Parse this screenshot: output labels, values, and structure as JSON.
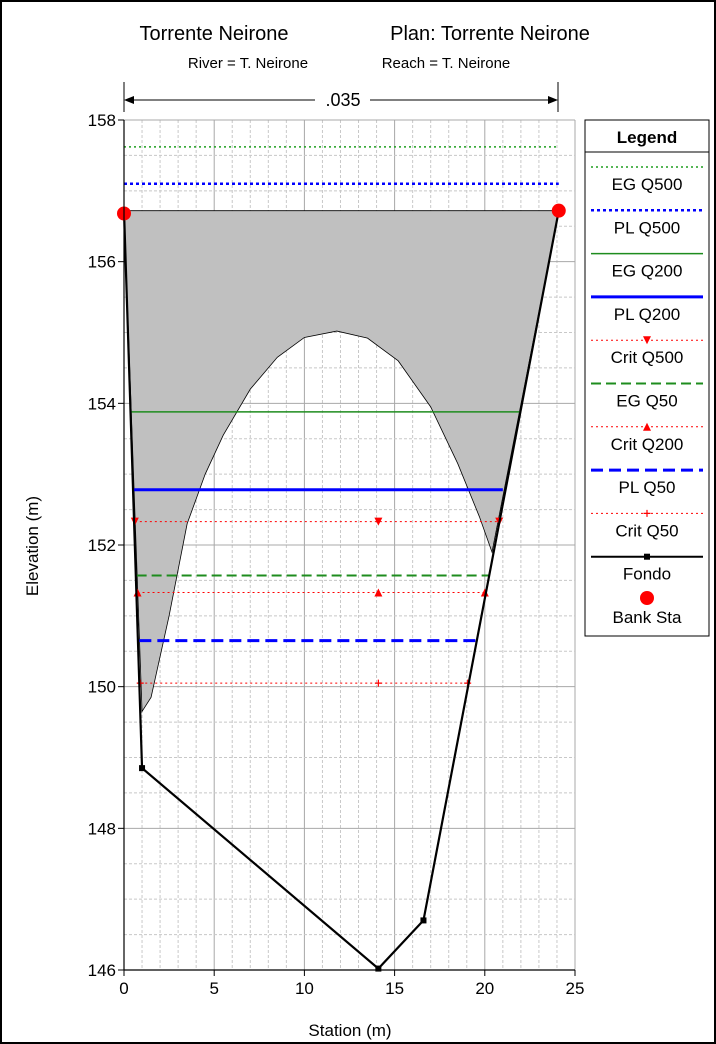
{
  "title": "Torrente Neirone",
  "plan": "Plan: Torrente Neirone",
  "subtitle_river": "River = T. Neirone",
  "subtitle_reach": "Reach = T. Neirone",
  "manning_label": ".035",
  "xlabel": "Station (m)",
  "ylabel": "Elevation (m)",
  "legend_title": "Legend",
  "chart_data": {
    "type": "line",
    "xlim": [
      0,
      25
    ],
    "ylim": [
      146,
      158
    ],
    "xticks": [
      0,
      5,
      10,
      15,
      20,
      25
    ],
    "yticks": [
      146,
      148,
      150,
      152,
      154,
      156,
      158
    ],
    "grid": true,
    "legend_position": "right",
    "ground": {
      "name": "Fondo",
      "color": "#000000",
      "points": [
        [
          0,
          156.72
        ],
        [
          1.0,
          148.85
        ],
        [
          14.1,
          146.02
        ],
        [
          16.6,
          146.7
        ],
        [
          24.1,
          156.72
        ]
      ]
    },
    "bank_stations": {
      "name": "Bank Sta",
      "color": "#ff0000",
      "points": [
        [
          0,
          156.68
        ],
        [
          24.1,
          156.72
        ]
      ]
    },
    "ineffective_fill": {
      "color": "#c0c0c0",
      "top_elevation": 156.72,
      "mound": [
        [
          1.0,
          149.65
        ],
        [
          1.5,
          149.85
        ],
        [
          2.5,
          151.0
        ],
        [
          3.5,
          152.3
        ],
        [
          4.5,
          153.0
        ],
        [
          5.5,
          153.55
        ],
        [
          7.0,
          154.2
        ],
        [
          8.5,
          154.65
        ],
        [
          10.0,
          154.93
        ],
        [
          11.8,
          155.02
        ],
        [
          13.5,
          154.92
        ],
        [
          15.2,
          154.6
        ],
        [
          17.0,
          153.95
        ],
        [
          18.5,
          153.15
        ],
        [
          19.7,
          152.4
        ],
        [
          20.4,
          151.9
        ]
      ]
    },
    "water_lines": [
      {
        "name": "EG Q500",
        "elevation": 157.62,
        "x_start": 0,
        "x_end": 24.1,
        "color": "#1e9e1e",
        "style": "dotted",
        "width": 1.5
      },
      {
        "name": "PL Q500",
        "elevation": 157.1,
        "x_start": 0,
        "x_end": 24.1,
        "color": "#0000ff",
        "style": "dotted",
        "width": 2.5
      },
      {
        "name": "EG Q200",
        "elevation": 153.88,
        "x_start": 0.4,
        "x_end": 21.95,
        "color": "#1e8c1e",
        "style": "solid",
        "width": 1.5
      },
      {
        "name": "PL Q200",
        "elevation": 152.78,
        "x_start": 0.55,
        "x_end": 21.0,
        "color": "#0000ff",
        "style": "solid",
        "width": 3
      },
      {
        "name": "Crit Q500",
        "elevation": 152.33,
        "x_start": 0.6,
        "x_end": 20.8,
        "color": "#ff0000",
        "style": "dotted",
        "width": 1,
        "marker": "tri-down",
        "marker_x": [
          0.6,
          14.1,
          20.8
        ]
      },
      {
        "name": "EG Q50",
        "elevation": 151.57,
        "x_start": 0.7,
        "x_end": 20.25,
        "color": "#1e8c1e",
        "style": "dashed",
        "width": 2
      },
      {
        "name": "Crit Q200",
        "elevation": 151.33,
        "x_start": 0.75,
        "x_end": 20.0,
        "color": "#ff0000",
        "style": "dotted",
        "width": 1,
        "marker": "tri-up",
        "marker_x": [
          0.75,
          14.1,
          20.0
        ]
      },
      {
        "name": "PL Q50",
        "elevation": 150.65,
        "x_start": 0.85,
        "x_end": 19.5,
        "color": "#0000ff",
        "style": "dashed",
        "width": 3
      },
      {
        "name": "Crit Q50",
        "elevation": 150.05,
        "x_start": 0.9,
        "x_end": 19.05,
        "color": "#ff0000",
        "style": "dotted",
        "width": 1,
        "marker": "plus",
        "marker_x": [
          0.9,
          14.1,
          19.05
        ]
      }
    ],
    "legend": [
      {
        "label": "EG Q500",
        "color": "#1e9e1e",
        "style": "dotted",
        "width": 1.5,
        "marker": "none"
      },
      {
        "label": "PL Q500",
        "color": "#0000ff",
        "style": "dotted",
        "width": 2.5,
        "marker": "none"
      },
      {
        "label": "EG Q200",
        "color": "#1e8c1e",
        "style": "solid",
        "width": 1.5,
        "marker": "none"
      },
      {
        "label": "PL Q200",
        "color": "#0000ff",
        "style": "solid",
        "width": 3,
        "marker": "none"
      },
      {
        "label": "Crit Q500",
        "color": "#ff0000",
        "style": "dotted",
        "width": 1,
        "marker": "tri-down"
      },
      {
        "label": "EG Q50",
        "color": "#1e8c1e",
        "style": "dashed",
        "width": 2,
        "marker": "none"
      },
      {
        "label": "Crit Q200",
        "color": "#ff0000",
        "style": "dotted",
        "width": 1,
        "marker": "tri-up"
      },
      {
        "label": "PL Q50",
        "color": "#0000ff",
        "style": "dashed",
        "width": 3,
        "marker": "none"
      },
      {
        "label": "Crit Q50",
        "color": "#ff0000",
        "style": "dotted",
        "width": 1,
        "marker": "plus"
      },
      {
        "label": "Fondo",
        "color": "#000000",
        "style": "solid",
        "width": 2,
        "marker": "square"
      },
      {
        "label": "Bank Sta",
        "color": "#ff0000",
        "style": "none",
        "width": 0,
        "marker": "circle"
      }
    ]
  }
}
